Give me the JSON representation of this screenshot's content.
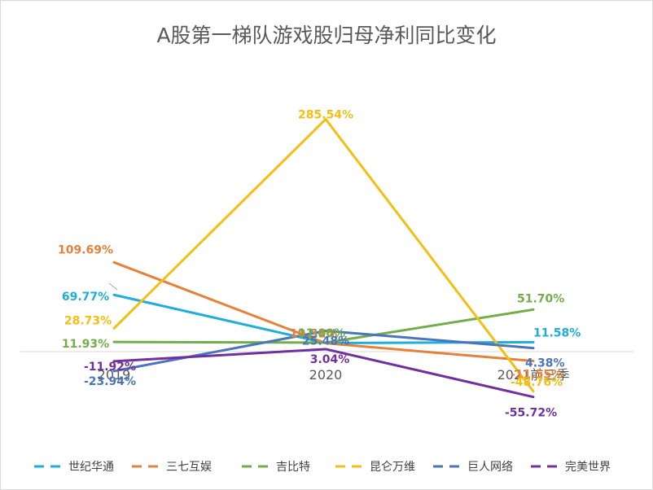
{
  "chart_data": {
    "type": "line",
    "title": "A股第一梯队游戏股归母净利同比变化",
    "categories": [
      "2019",
      "2020",
      "2021前三季"
    ],
    "unit": "%",
    "series": [
      {
        "name": "世纪华通",
        "color": "#1DAEDB",
        "values": [
          69.77,
          10.5,
          11.58
        ],
        "labels": [
          "69.77%",
          "10.50%",
          "11.58%"
        ]
      },
      {
        "name": "三七互娱",
        "color": "#E5813A",
        "values": [
          109.69,
          10.31,
          -11.55
        ],
        "labels": [
          "109.69%",
          "10.31%",
          "-11.55%"
        ]
      },
      {
        "name": "吉比特",
        "color": "#72AD4A",
        "values": [
          11.93,
          11.0,
          51.7
        ],
        "labels": [
          "11.93%",
          "11.00%",
          "51.70%"
        ]
      },
      {
        "name": "昆仑万维",
        "color": "#F3BF14",
        "values": [
          28.73,
          285.54,
          -48.76
        ],
        "labels": [
          "28.73%",
          "285.54%",
          "-48.76%"
        ]
      },
      {
        "name": "巨人网络",
        "color": "#4A74BB",
        "values": [
          -23.94,
          25.48,
          4.38
        ],
        "labels": [
          "-23.94%",
          "25.48%",
          "4.38%"
        ]
      },
      {
        "name": "完美世界",
        "color": "#70309F",
        "values": [
          -11.92,
          3.04,
          -55.72
        ],
        "labels": [
          "-11.92%",
          "3.04%",
          "-55.72%"
        ]
      }
    ],
    "legend_position": "bottom"
  }
}
